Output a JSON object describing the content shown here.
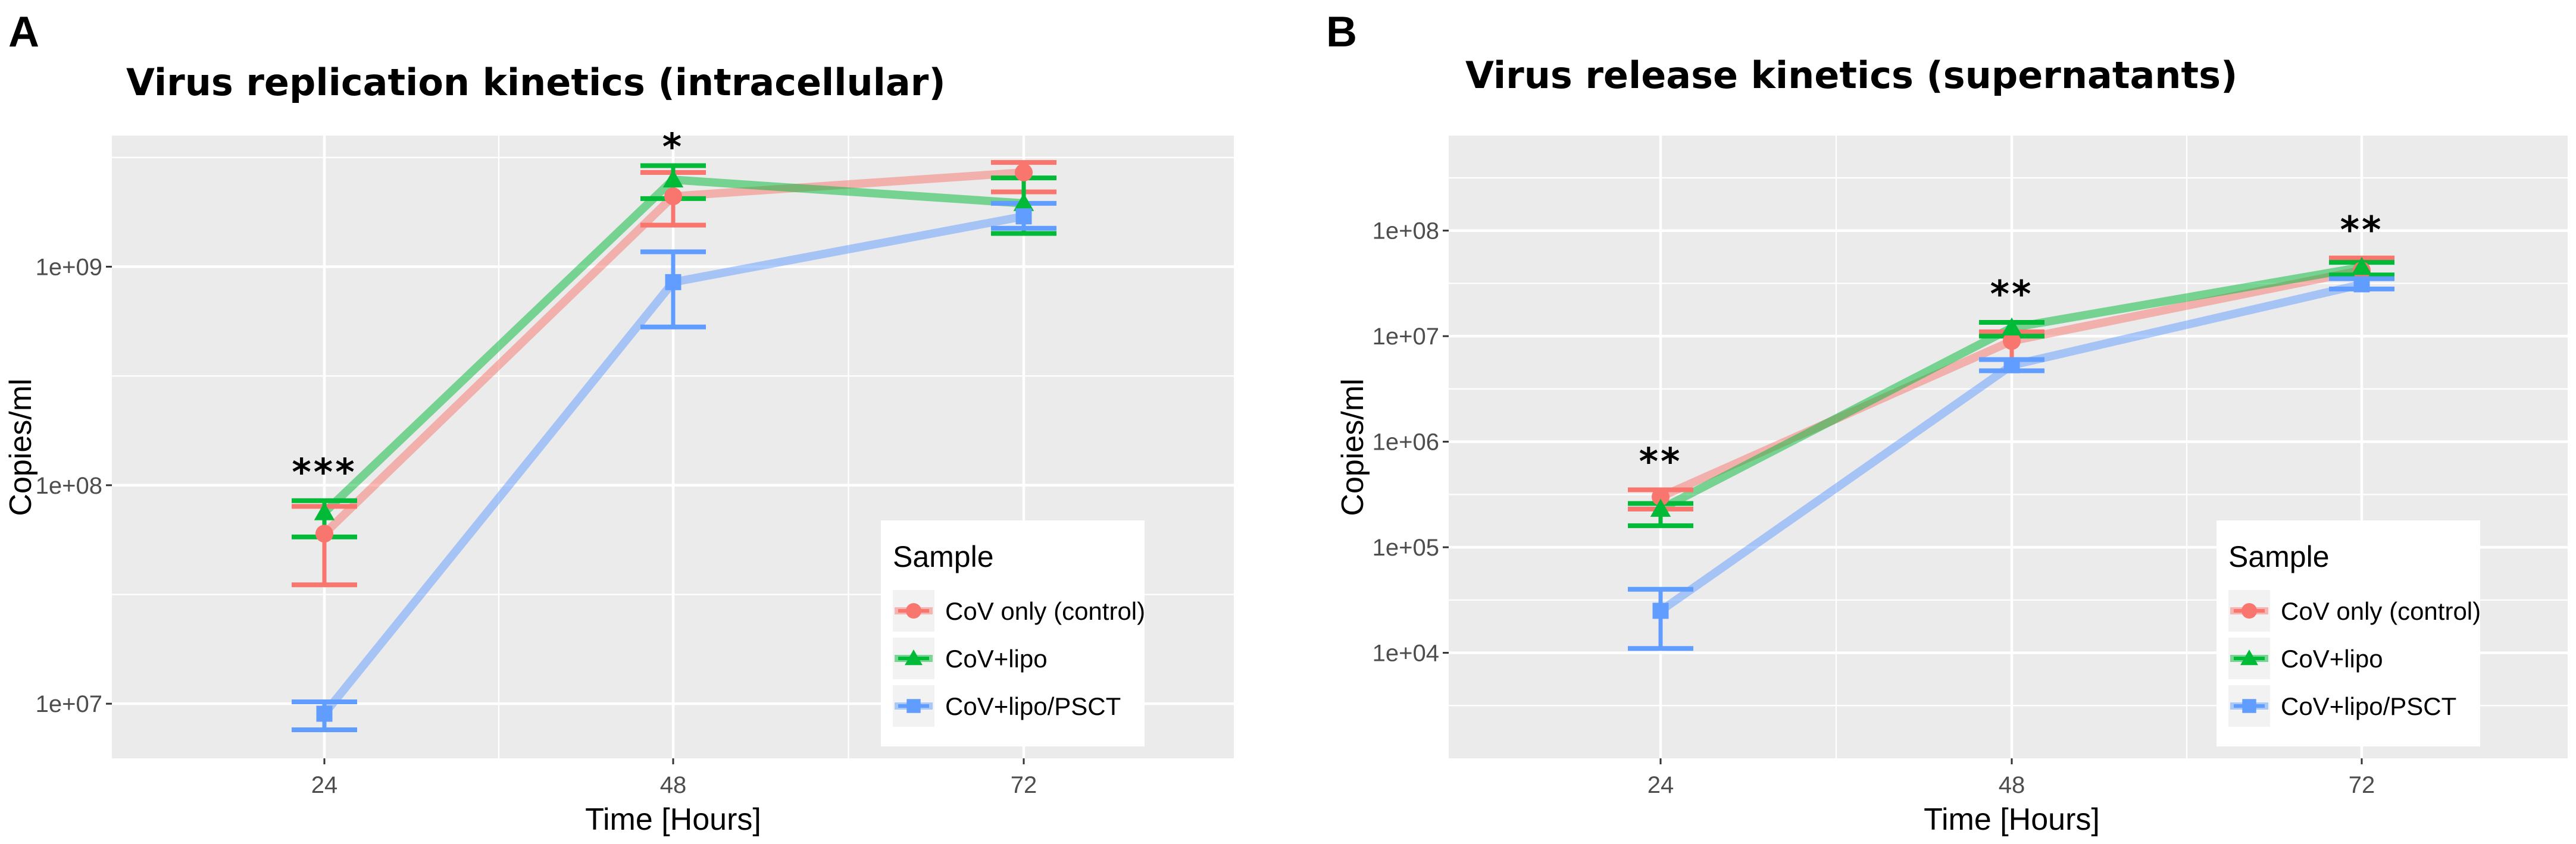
{
  "chart_data": [
    {
      "type": "line",
      "panel_label": "A",
      "title": "Virus replication kinetics (intracellular)",
      "xlabel": "Time [Hours]",
      "ylabel": "Copies/ml",
      "y_scale": "log10",
      "categories": [
        "24",
        "48",
        "72"
      ],
      "ylim_log10": [
        6.75,
        9.6
      ],
      "y_ticks": [
        {
          "log10": 7,
          "label": "1e+07"
        },
        {
          "log10": 8,
          "label": "1e+08"
        },
        {
          "log10": 9,
          "label": "1e+09"
        }
      ],
      "series": [
        {
          "name": "CoV only (control)",
          "color": "#F8766D",
          "marker": "circle",
          "values": [
            60000000,
            2100000000,
            2700000000
          ],
          "error_low": [
            35000000,
            1550000000,
            2200000000
          ],
          "error_high": [
            80000000,
            2700000000,
            3000000000
          ]
        },
        {
          "name": "CoV+lipo",
          "color": "#00BA38",
          "marker": "triangle",
          "values": [
            75000000,
            2500000000,
            1950000000
          ],
          "error_low": [
            58000000,
            2050000000,
            1420000000
          ],
          "error_high": [
            85000000,
            2900000000,
            2550000000
          ]
        },
        {
          "name": "CoV+lipo/PSCT",
          "color": "#619CFF",
          "marker": "square",
          "values": [
            9000000,
            850000000,
            1700000000
          ],
          "error_low": [
            7600000,
            530000000,
            1500000000
          ],
          "error_high": [
            10200000,
            1170000000,
            1950000000
          ]
        }
      ],
      "annotations": [
        {
          "category": "24",
          "text": "***"
        },
        {
          "category": "48",
          "text": "*"
        }
      ],
      "legend_title": "Sample",
      "legend_position": "bottom-right",
      "grid": true
    },
    {
      "type": "line",
      "panel_label": "B",
      "title": "Virus release kinetics (supernatants)",
      "xlabel": "Time [Hours]",
      "ylabel": "Copies/ml",
      "y_scale": "log10",
      "categories": [
        "24",
        "48",
        "72"
      ],
      "ylim_log10": [
        3.0,
        8.9
      ],
      "y_ticks": [
        {
          "log10": 4,
          "label": "1e+04"
        },
        {
          "log10": 5,
          "label": "1e+05"
        },
        {
          "log10": 6,
          "label": "1e+06"
        },
        {
          "log10": 7,
          "label": "1e+07"
        },
        {
          "log10": 8,
          "label": "1e+08"
        }
      ],
      "series": [
        {
          "name": "CoV only (control)",
          "color": "#F8766D",
          "marker": "circle",
          "values": [
            300000,
            9000000,
            42000000
          ],
          "error_low": [
            230000,
            6000000,
            36000000
          ],
          "error_high": [
            350000,
            11000000,
            55000000
          ]
        },
        {
          "name": "CoV+lipo",
          "color": "#00BA38",
          "marker": "triangle",
          "values": [
            230000,
            12000000,
            45000000
          ],
          "error_low": [
            160000,
            10000000,
            38000000
          ],
          "error_high": [
            260000,
            13500000,
            50000000
          ]
        },
        {
          "name": "CoV+lipo/PSCT",
          "color": "#619CFF",
          "marker": "square",
          "values": [
            25000,
            5300000,
            31000000
          ],
          "error_low": [
            11000,
            4700000,
            28000000
          ],
          "error_high": [
            40000,
            6000000,
            35000000
          ]
        }
      ],
      "annotations": [
        {
          "category": "24",
          "text": "**"
        },
        {
          "category": "48",
          "text": "**"
        },
        {
          "category": "72",
          "text": "**"
        }
      ],
      "legend_title": "Sample",
      "legend_position": "bottom-right",
      "grid": true
    }
  ]
}
